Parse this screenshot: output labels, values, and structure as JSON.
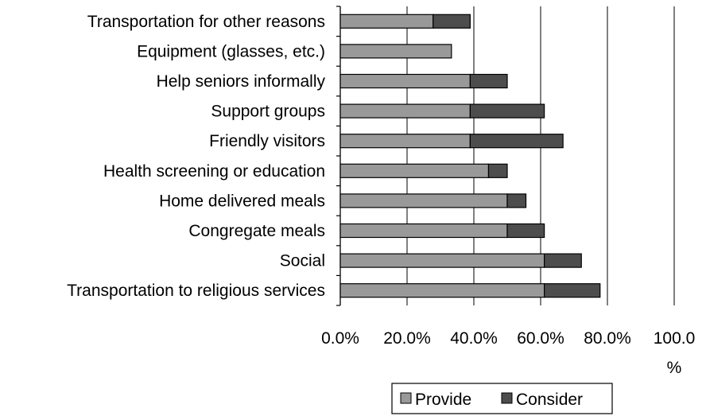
{
  "chart_data": {
    "type": "bar",
    "orientation": "horizontal",
    "stacked": true,
    "title": "",
    "xlabel": "",
    "ylabel": "",
    "xlim": [
      0,
      100
    ],
    "grid": true,
    "legend_position": "bottom",
    "x_ticks": [
      {
        "value": 0,
        "label": "0.0%"
      },
      {
        "value": 20,
        "label": "20.0%"
      },
      {
        "value": 40,
        "label": "40.0%"
      },
      {
        "value": 60,
        "label": "60.0%"
      },
      {
        "value": 80,
        "label": "80.0%"
      },
      {
        "value": 100,
        "label": "100.0",
        "label_line2": "%"
      }
    ],
    "categories": [
      "Transportation for other reasons",
      "Equipment (glasses, etc.)",
      "Help seniors informally",
      "Support groups",
      "Friendly visitors",
      "Health screening or education",
      "Home delivered meals",
      "Congregate meals",
      "Social",
      "Transportation to religious services"
    ],
    "series": [
      {
        "name": "Provide",
        "color": "#999999",
        "values": [
          27.8,
          33.3,
          38.9,
          38.9,
          38.9,
          44.4,
          50.0,
          50.0,
          61.1,
          61.1
        ]
      },
      {
        "name": "Consider",
        "color": "#4d4d4d",
        "values": [
          11.1,
          0,
          11.1,
          22.2,
          27.8,
          5.6,
          5.6,
          11.1,
          11.1,
          16.7
        ]
      }
    ]
  }
}
